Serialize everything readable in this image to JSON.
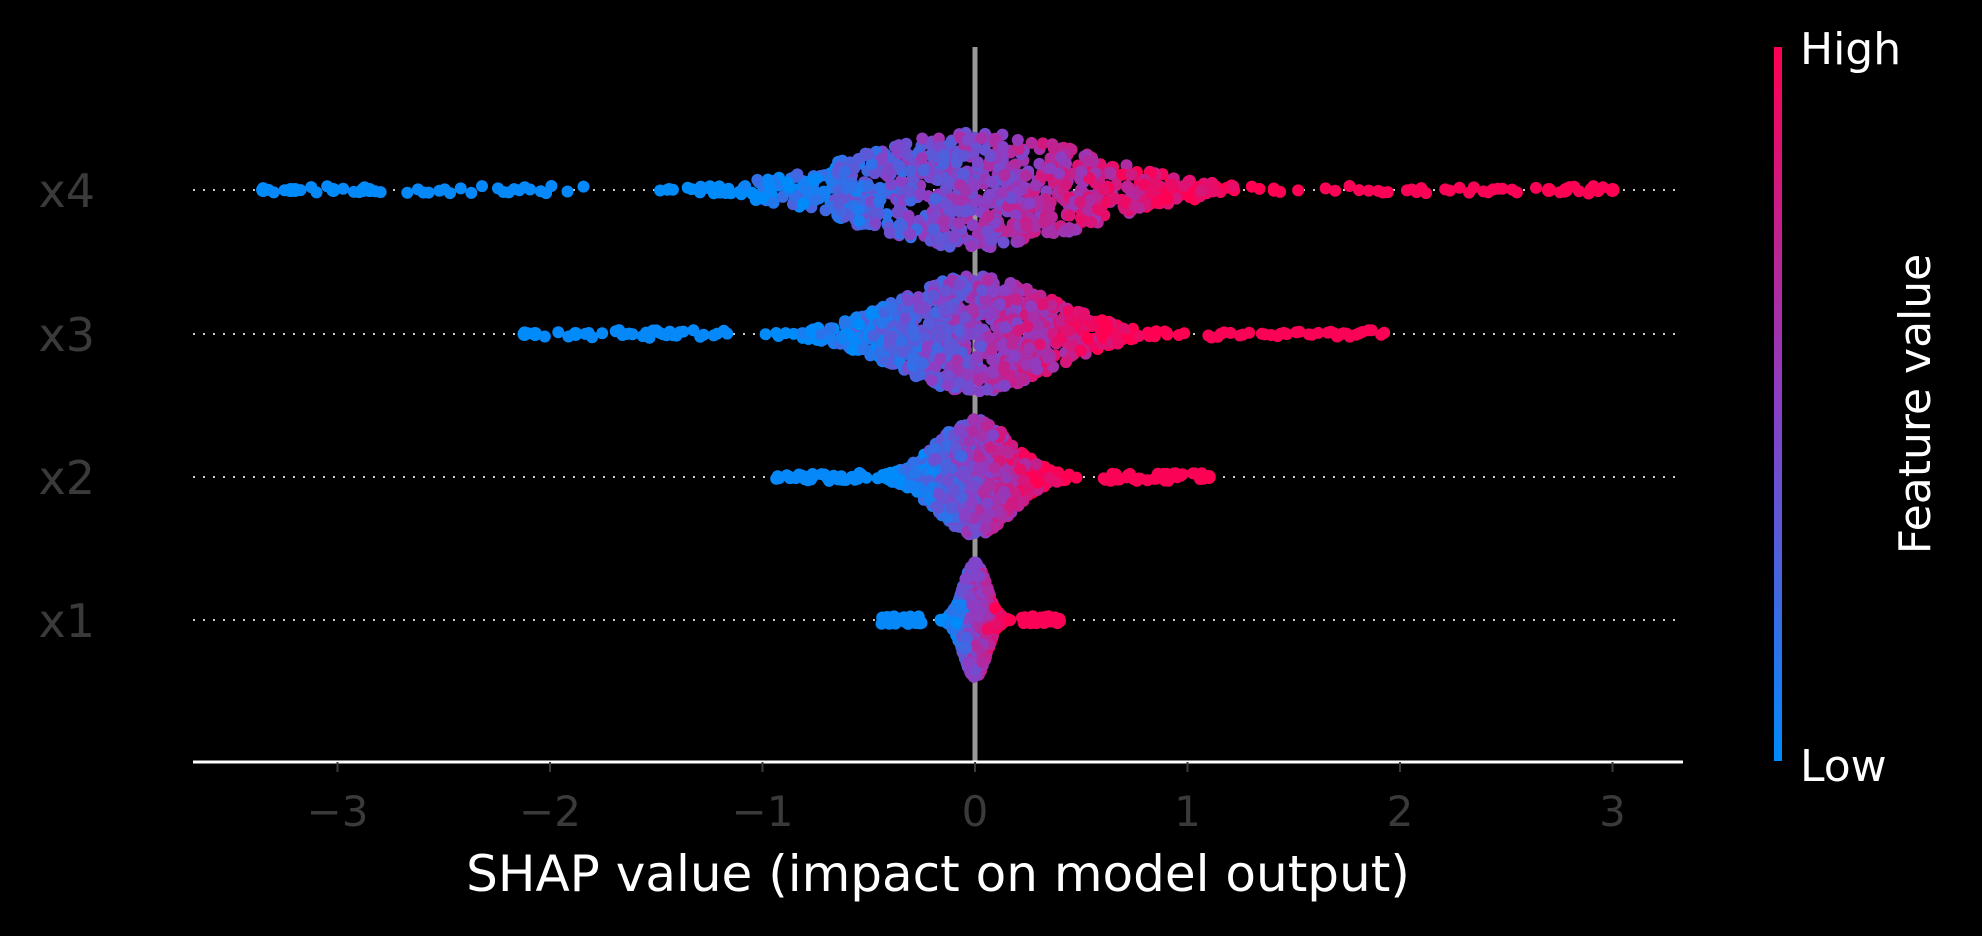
{
  "chart_data": {
    "type": "scatter",
    "subtype": "shap-beeswarm-summary",
    "title": "",
    "xlabel": "SHAP value (impact on model output)",
    "ylabel": "",
    "xlim": [
      -3.7,
      3.35
    ],
    "xticks": [
      -3,
      -2,
      -1,
      0,
      1,
      2,
      3
    ],
    "xtick_labels": [
      "−3",
      "−2",
      "−1",
      "0",
      "1",
      "2",
      "3"
    ],
    "background": "#000000",
    "grid": false,
    "features": [
      {
        "name": "x4",
        "min": -3.35,
        "max": 3.0,
        "spread": 1.0,
        "outliers": [
          -3.35,
          -3.22,
          -3.2,
          -3.02,
          -2.88,
          -2.85,
          2.7,
          2.78,
          2.9,
          3.0
        ]
      },
      {
        "name": "x3",
        "min": -2.12,
        "max": 1.97,
        "spread": 0.65,
        "outliers": [
          -2.12,
          -2.07,
          -1.88
        ]
      },
      {
        "name": "x2",
        "min": -0.95,
        "max": 1.1,
        "spread": 0.32,
        "outliers": [
          1.1
        ]
      },
      {
        "name": "x1",
        "min": -0.44,
        "max": 0.4,
        "spread": 0.1,
        "outliers": []
      }
    ],
    "colorbar": {
      "label": "Feature value",
      "high_label": "High",
      "low_label": "Low",
      "low_color": "#008bfb",
      "high_color": "#ff0052"
    },
    "zero_line_color": "#999999",
    "row_guide_color": "#cccccc"
  }
}
